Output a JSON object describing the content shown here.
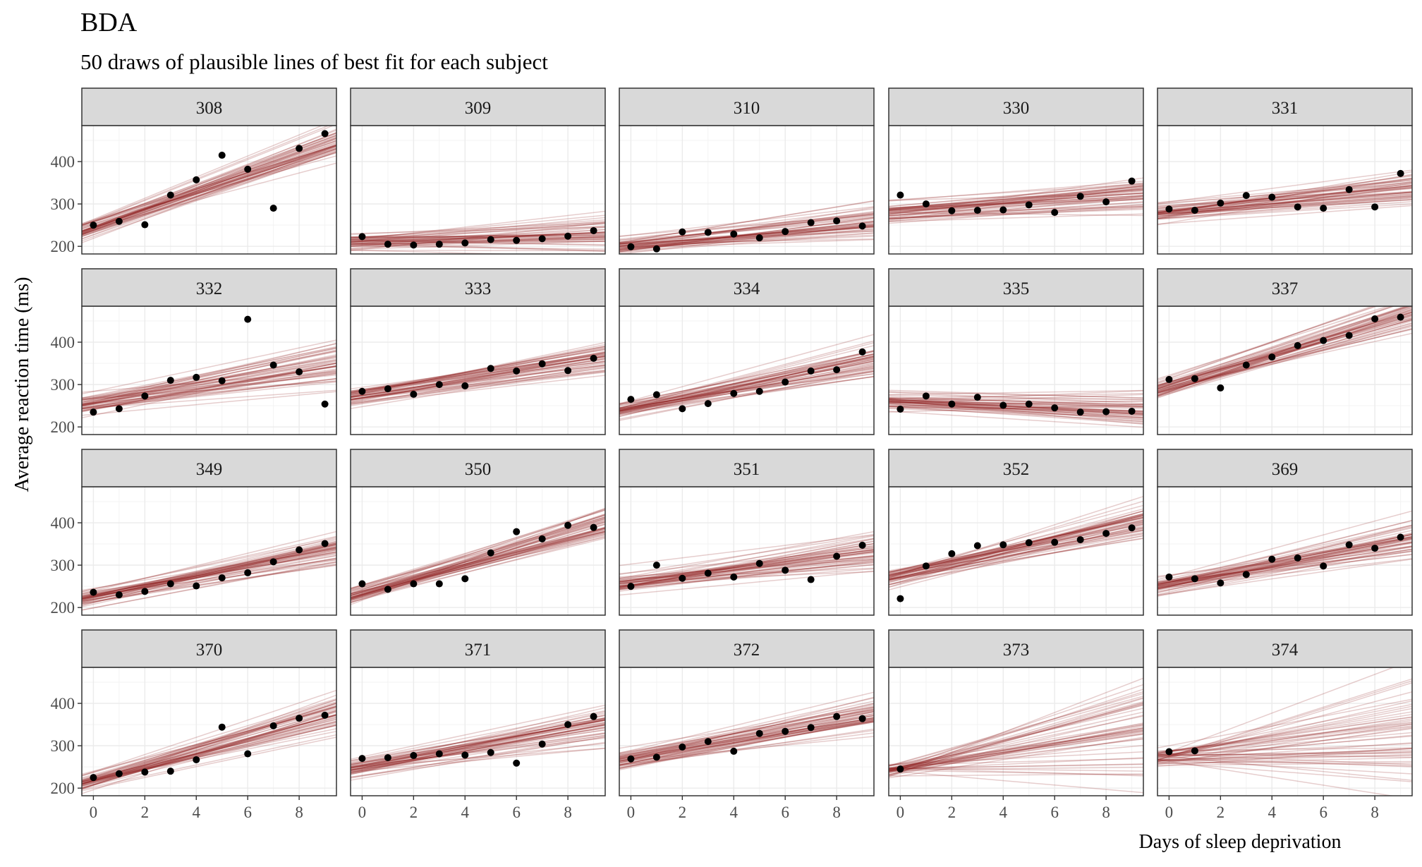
{
  "chart_data": {
    "type": "scatter",
    "title": "BDA",
    "subtitle": "50 draws of plausible lines of best fit for each subject",
    "xlabel": "Days of sleep deprivation",
    "ylabel": "Average reaction time (ms)",
    "xlim": [
      -0.45,
      9.45
    ],
    "ylim": [
      182,
      485
    ],
    "x_ticks": [
      0,
      2,
      4,
      6,
      8
    ],
    "y_ticks": [
      200,
      300,
      400
    ],
    "grid": true,
    "n_draws": 50,
    "colors": {
      "point": "#000000",
      "draw_line": "#8b1a1a",
      "strip_fill": "#d9d9d9",
      "panel_border": "#333333",
      "grid": "#ebebeb"
    },
    "panels": [
      {
        "subject": "308",
        "days": [
          0,
          1,
          2,
          3,
          4,
          5,
          6,
          7,
          8,
          9
        ],
        "reaction": [
          250,
          259,
          251,
          321,
          357,
          415,
          382,
          290,
          431,
          466
        ],
        "fit": {
          "intercept": 244,
          "slope": 21.8,
          "intercept_sd": 10,
          "slope_sd": 2.0
        }
      },
      {
        "subject": "309",
        "days": [
          0,
          1,
          2,
          3,
          4,
          5,
          6,
          7,
          8,
          9
        ],
        "reaction": [
          223,
          205,
          203,
          205,
          208,
          216,
          214,
          218,
          224,
          237
        ],
        "fit": {
          "intercept": 212,
          "slope": 2.2,
          "intercept_sd": 10,
          "slope_sd": 2.0
        }
      },
      {
        "subject": "310",
        "days": [
          0,
          1,
          2,
          3,
          4,
          5,
          6,
          7,
          8,
          9
        ],
        "reaction": [
          199,
          194,
          234,
          233,
          229,
          220,
          235,
          256,
          260,
          248
        ],
        "fit": {
          "intercept": 204,
          "slope": 6.1,
          "intercept_sd": 10,
          "slope_sd": 2.0
        }
      },
      {
        "subject": "330",
        "days": [
          0,
          1,
          2,
          3,
          4,
          5,
          6,
          7,
          8,
          9
        ],
        "reaction": [
          321,
          300,
          284,
          285,
          286,
          298,
          280,
          318,
          305,
          354
        ],
        "fit": {
          "intercept": 281,
          "slope": 4.4,
          "intercept_sd": 12,
          "slope_sd": 2.0
        }
      },
      {
        "subject": "331",
        "days": [
          0,
          1,
          2,
          3,
          4,
          5,
          6,
          7,
          8,
          9
        ],
        "reaction": [
          288,
          285,
          302,
          320,
          316,
          293,
          290,
          334,
          293,
          372
        ],
        "fit": {
          "intercept": 281,
          "slope": 6.2,
          "intercept_sd": 12,
          "slope_sd": 2.0
        }
      },
      {
        "subject": "332",
        "days": [
          0,
          1,
          2,
          3,
          4,
          5,
          6,
          7,
          8,
          9
        ],
        "reaction": [
          235,
          243,
          273,
          310,
          317,
          309,
          454,
          346,
          330,
          254
        ],
        "fit": {
          "intercept": 256,
          "slope": 9.6,
          "intercept_sd": 12,
          "slope_sd": 3.0
        }
      },
      {
        "subject": "333",
        "days": [
          0,
          1,
          2,
          3,
          4,
          5,
          6,
          7,
          8,
          9
        ],
        "reaction": [
          284,
          290,
          277,
          300,
          297,
          338,
          332,
          349,
          333,
          362
        ],
        "fit": {
          "intercept": 276,
          "slope": 9.6,
          "intercept_sd": 10,
          "slope_sd": 2.0
        }
      },
      {
        "subject": "334",
        "days": [
          0,
          1,
          2,
          3,
          4,
          5,
          6,
          7,
          8,
          9
        ],
        "reaction": [
          265,
          276,
          243,
          255,
          279,
          284,
          306,
          332,
          335,
          377
        ],
        "fit": {
          "intercept": 246,
          "slope": 11.6,
          "intercept_sd": 10,
          "slope_sd": 2.0
        }
      },
      {
        "subject": "335",
        "days": [
          0,
          1,
          2,
          3,
          4,
          5,
          6,
          7,
          8,
          9
        ],
        "reaction": [
          242,
          273,
          254,
          270,
          251,
          254,
          245,
          235,
          236,
          237
        ],
        "fit": {
          "intercept": 260,
          "slope": -2.2,
          "intercept_sd": 10,
          "slope_sd": 2.0
        }
      },
      {
        "subject": "337",
        "days": [
          0,
          1,
          2,
          3,
          4,
          5,
          6,
          7,
          8,
          9
        ],
        "reaction": [
          312,
          314,
          292,
          346,
          365,
          392,
          404,
          416,
          455,
          459
        ],
        "fit": {
          "intercept": 297,
          "slope": 18.5,
          "intercept_sd": 10,
          "slope_sd": 2.0
        }
      },
      {
        "subject": "349",
        "days": [
          0,
          1,
          2,
          3,
          4,
          5,
          6,
          7,
          8,
          9
        ],
        "reaction": [
          236,
          230,
          238,
          256,
          251,
          270,
          282,
          308,
          336,
          351
        ],
        "fit": {
          "intercept": 222,
          "slope": 12.0,
          "intercept_sd": 10,
          "slope_sd": 2.0
        }
      },
      {
        "subject": "350",
        "days": [
          0,
          1,
          2,
          3,
          4,
          5,
          6,
          7,
          8,
          9
        ],
        "reaction": [
          256,
          243,
          256,
          256,
          268,
          329,
          379,
          362,
          394,
          389
        ],
        "fit": {
          "intercept": 233,
          "slope": 17.0,
          "intercept_sd": 10,
          "slope_sd": 2.0
        }
      },
      {
        "subject": "351",
        "days": [
          0,
          1,
          2,
          3,
          4,
          5,
          6,
          7,
          8,
          9
        ],
        "reaction": [
          250,
          300,
          269,
          281,
          272,
          304,
          288,
          266,
          321,
          347
        ],
        "fit": {
          "intercept": 259,
          "slope": 7.5,
          "intercept_sd": 10,
          "slope_sd": 2.0
        }
      },
      {
        "subject": "352",
        "days": [
          0,
          1,
          2,
          3,
          4,
          5,
          6,
          7,
          8,
          9
        ],
        "reaction": [
          221,
          298,
          327,
          346,
          348,
          353,
          354,
          360,
          375,
          388
        ],
        "fit": {
          "intercept": 275,
          "slope": 13.5,
          "intercept_sd": 12,
          "slope_sd": 2.5
        }
      },
      {
        "subject": "369",
        "days": [
          0,
          1,
          2,
          3,
          4,
          5,
          6,
          7,
          8,
          9
        ],
        "reaction": [
          272,
          268,
          258,
          278,
          314,
          317,
          298,
          348,
          340,
          366
        ],
        "fit": {
          "intercept": 255,
          "slope": 11.6,
          "intercept_sd": 10,
          "slope_sd": 2.0
        }
      },
      {
        "subject": "370",
        "days": [
          0,
          1,
          2,
          3,
          4,
          5,
          6,
          7,
          8,
          9
        ],
        "reaction": [
          225,
          234,
          238,
          240,
          267,
          344,
          281,
          347,
          365,
          372
        ],
        "fit": {
          "intercept": 220,
          "slope": 16.8,
          "intercept_sd": 10,
          "slope_sd": 2.0
        }
      },
      {
        "subject": "371",
        "days": [
          0,
          1,
          2,
          3,
          4,
          5,
          6,
          7,
          8,
          9
        ],
        "reaction": [
          270,
          272,
          277,
          281,
          278,
          284,
          259,
          304,
          350,
          369
        ],
        "fit": {
          "intercept": 250,
          "slope": 10.5,
          "intercept_sd": 10,
          "slope_sd": 2.0
        }
      },
      {
        "subject": "372",
        "days": [
          0,
          1,
          2,
          3,
          4,
          5,
          6,
          7,
          8,
          9
        ],
        "reaction": [
          269,
          273,
          297,
          310,
          287,
          329,
          334,
          343,
          369,
          364
        ],
        "fit": {
          "intercept": 268,
          "slope": 11.0,
          "intercept_sd": 10,
          "slope_sd": 2.0
        }
      },
      {
        "subject": "373",
        "days": [
          0
        ],
        "reaction": [
          245
        ],
        "fit": {
          "intercept": 247,
          "slope": 12.0,
          "intercept_sd": 8,
          "slope_sd": 7.0
        }
      },
      {
        "subject": "374",
        "days": [
          0,
          1
        ],
        "reaction": [
          286,
          288
        ],
        "fit": {
          "intercept": 278,
          "slope": 7.0,
          "intercept_sd": 12,
          "slope_sd": 7.0
        }
      }
    ]
  }
}
